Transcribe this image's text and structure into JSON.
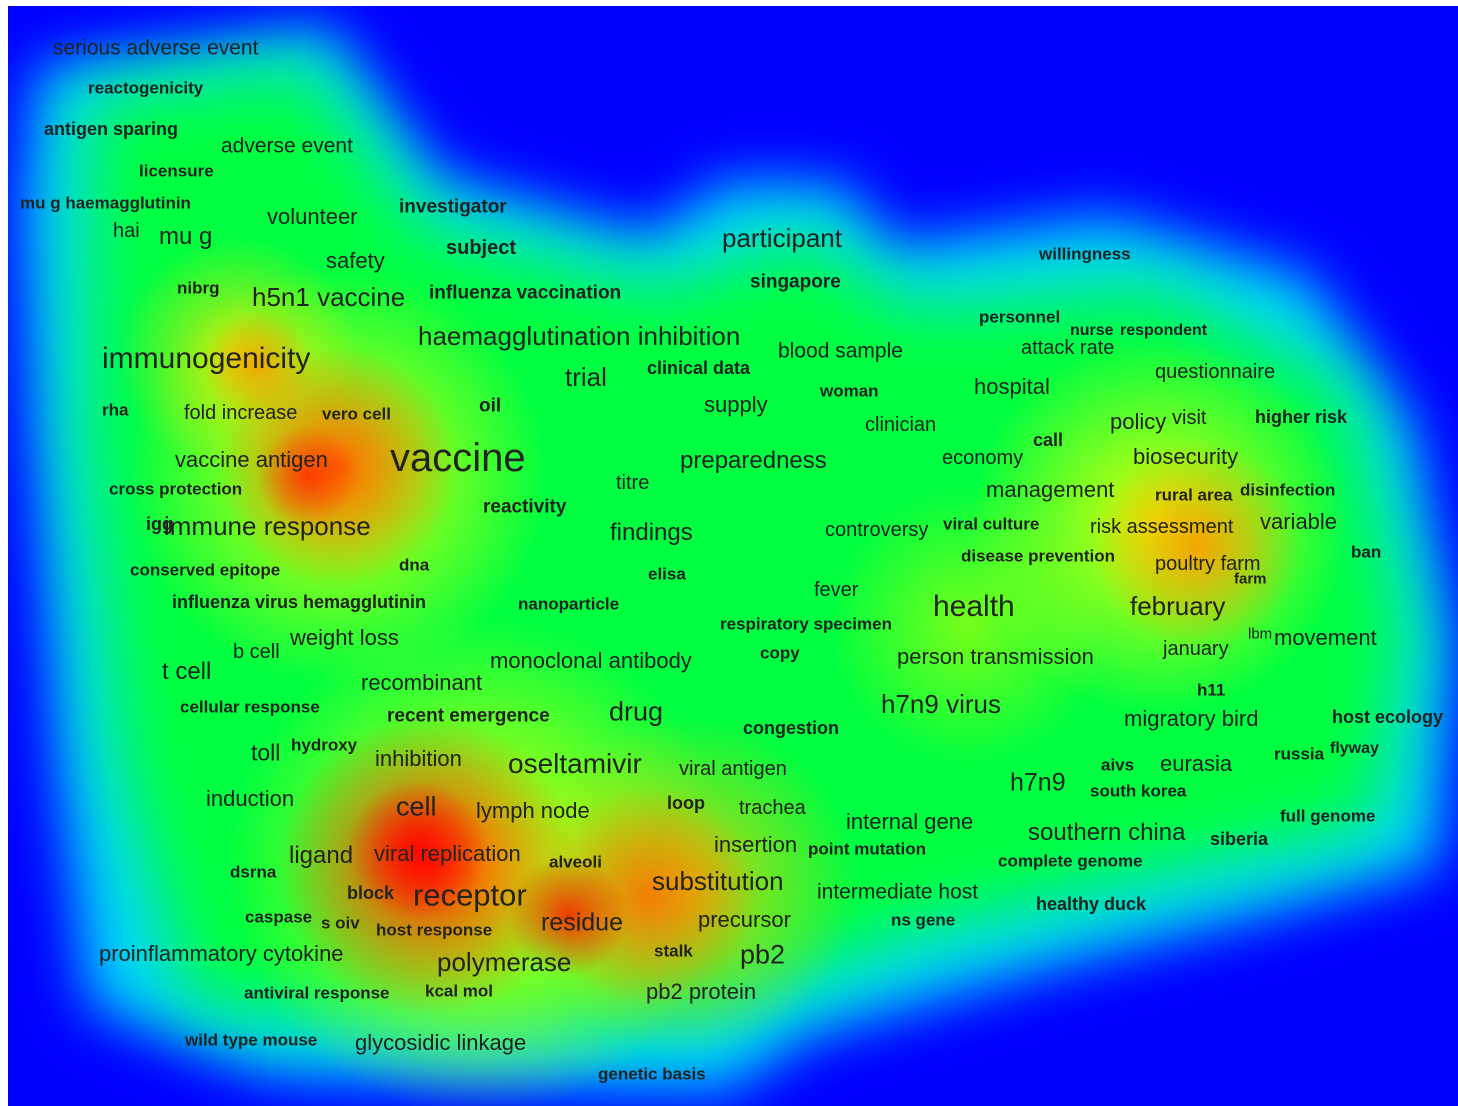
{
  "colors": {
    "background": "#0000ff",
    "low": "#00e5ff",
    "mid": "#00ff00",
    "high": "#ffff00",
    "peak": "#ff0000",
    "label": "#232323"
  },
  "terms": [
    {
      "text": "serious adverse event"
    },
    {
      "text": "reactogenicity"
    },
    {
      "text": "antigen sparing"
    },
    {
      "text": "adverse event"
    },
    {
      "text": "licensure"
    },
    {
      "text": "mu g haemagglutinin"
    },
    {
      "text": "volunteer"
    },
    {
      "text": "investigator"
    },
    {
      "text": "hai"
    },
    {
      "text": "mu g"
    },
    {
      "text": "safety"
    },
    {
      "text": "subject"
    },
    {
      "text": "participant"
    },
    {
      "text": "willingness"
    },
    {
      "text": "nibrg"
    },
    {
      "text": "h5n1 vaccine"
    },
    {
      "text": "influenza vaccination"
    },
    {
      "text": "singapore"
    },
    {
      "text": "personnel"
    },
    {
      "text": "nurse"
    },
    {
      "text": "respondent"
    },
    {
      "text": "attack rate"
    },
    {
      "text": "haemagglutination inhibition"
    },
    {
      "text": "blood sample"
    },
    {
      "text": "immunogenicity"
    },
    {
      "text": "trial"
    },
    {
      "text": "clinical data"
    },
    {
      "text": "woman"
    },
    {
      "text": "hospital"
    },
    {
      "text": "questionnaire"
    },
    {
      "text": "rha"
    },
    {
      "text": "fold increase"
    },
    {
      "text": "vero cell"
    },
    {
      "text": "oil"
    },
    {
      "text": "supply"
    },
    {
      "text": "clinician"
    },
    {
      "text": "policy"
    },
    {
      "text": "visit"
    },
    {
      "text": "higher risk"
    },
    {
      "text": "call"
    },
    {
      "text": "vaccine antigen"
    },
    {
      "text": "vaccine"
    },
    {
      "text": "preparedness"
    },
    {
      "text": "economy"
    },
    {
      "text": "biosecurity"
    },
    {
      "text": "titre"
    },
    {
      "text": "cross protection"
    },
    {
      "text": "management"
    },
    {
      "text": "rural area"
    },
    {
      "text": "disinfection"
    },
    {
      "text": "reactivity"
    },
    {
      "text": "igg"
    },
    {
      "text": "immune response"
    },
    {
      "text": "findings"
    },
    {
      "text": "controversy"
    },
    {
      "text": "viral culture"
    },
    {
      "text": "risk assessment"
    },
    {
      "text": "variable"
    },
    {
      "text": "ban"
    },
    {
      "text": "disease prevention"
    },
    {
      "text": "conserved epitope"
    },
    {
      "text": "dna"
    },
    {
      "text": "elisa"
    },
    {
      "text": "poultry farm"
    },
    {
      "text": "farm"
    },
    {
      "text": "fever"
    },
    {
      "text": "influenza virus hemagglutinin"
    },
    {
      "text": "nanoparticle"
    },
    {
      "text": "health"
    },
    {
      "text": "february"
    },
    {
      "text": "respiratory specimen"
    },
    {
      "text": "weight loss"
    },
    {
      "text": "b cell"
    },
    {
      "text": "copy"
    },
    {
      "text": "lbm"
    },
    {
      "text": "movement"
    },
    {
      "text": "monoclonal antibody"
    },
    {
      "text": "person transmission"
    },
    {
      "text": "january"
    },
    {
      "text": "t cell"
    },
    {
      "text": "recombinant"
    },
    {
      "text": "h11"
    },
    {
      "text": "cellular response"
    },
    {
      "text": "drug"
    },
    {
      "text": "h7n9 virus"
    },
    {
      "text": "recent emergence"
    },
    {
      "text": "congestion"
    },
    {
      "text": "migratory bird"
    },
    {
      "text": "host ecology"
    },
    {
      "text": "hydroxy"
    },
    {
      "text": "toll"
    },
    {
      "text": "inhibition"
    },
    {
      "text": "oseltamivir"
    },
    {
      "text": "flyway"
    },
    {
      "text": "russia"
    },
    {
      "text": "aivs"
    },
    {
      "text": "eurasia"
    },
    {
      "text": "viral antigen"
    },
    {
      "text": "h7n9"
    },
    {
      "text": "induction"
    },
    {
      "text": "south korea"
    },
    {
      "text": "cell"
    },
    {
      "text": "lymph node"
    },
    {
      "text": "loop"
    },
    {
      "text": "trachea"
    },
    {
      "text": "full genome"
    },
    {
      "text": "internal gene"
    },
    {
      "text": "southern china"
    },
    {
      "text": "siberia"
    },
    {
      "text": "ligand"
    },
    {
      "text": "viral replication"
    },
    {
      "text": "insertion"
    },
    {
      "text": "point mutation"
    },
    {
      "text": "alveoli"
    },
    {
      "text": "dsrna"
    },
    {
      "text": "complete genome"
    },
    {
      "text": "substitution"
    },
    {
      "text": "block"
    },
    {
      "text": "receptor"
    },
    {
      "text": "intermediate host"
    },
    {
      "text": "healthy duck"
    },
    {
      "text": "caspase"
    },
    {
      "text": "s oiv"
    },
    {
      "text": "residue"
    },
    {
      "text": "precursor"
    },
    {
      "text": "host response"
    },
    {
      "text": "ns gene"
    },
    {
      "text": "proinflammatory cytokine"
    },
    {
      "text": "stalk"
    },
    {
      "text": "pb2"
    },
    {
      "text": "polymerase"
    },
    {
      "text": "antiviral response"
    },
    {
      "text": "kcal mol"
    },
    {
      "text": "pb2 protein"
    },
    {
      "text": "wild type mouse"
    },
    {
      "text": "glycosidic linkage"
    },
    {
      "text": "genetic basis"
    }
  ]
}
